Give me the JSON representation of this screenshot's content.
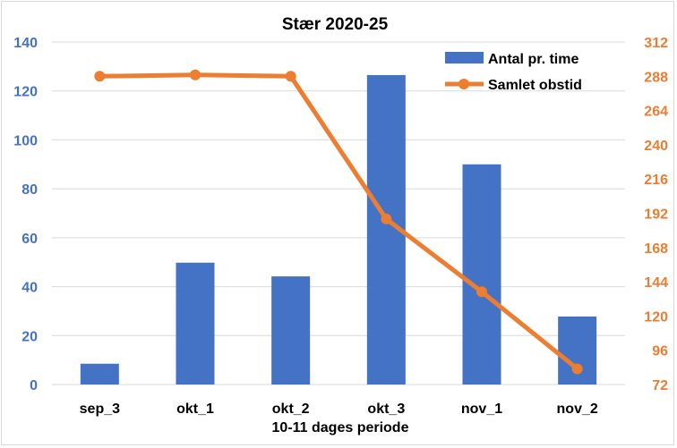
{
  "chart_data": {
    "type": "bar+line",
    "title": "Stær 2020-25",
    "xlabel": "10-11 dages periode",
    "categories": [
      "sep_3",
      "okt_1",
      "okt_2",
      "okt_3",
      "nov_1",
      "nov_2"
    ],
    "series": [
      {
        "name": "Antal pr. time",
        "type": "bar",
        "axis": "left",
        "color": "#4472c4",
        "values": [
          8.5,
          49.8,
          44.2,
          126.5,
          90.0,
          27.8
        ]
      },
      {
        "name": "Samlet obstid",
        "type": "line",
        "axis": "right",
        "color": "#ed7d31",
        "values": [
          288,
          289,
          288,
          188,
          137,
          83
        ]
      }
    ],
    "y_left": {
      "min": 0,
      "max": 140,
      "ticks": [
        "0",
        "20",
        "40",
        "60",
        "80",
        "100",
        "120",
        "140"
      ],
      "color": "#4472c4"
    },
    "y_right": {
      "min": 72,
      "max": 312,
      "ticks": [
        "72",
        "96",
        "120",
        "144",
        "168",
        "192",
        "216",
        "240",
        "264",
        "288",
        "312"
      ],
      "color": "#ed7d31"
    },
    "grid": true,
    "legend_position": "top-right"
  }
}
